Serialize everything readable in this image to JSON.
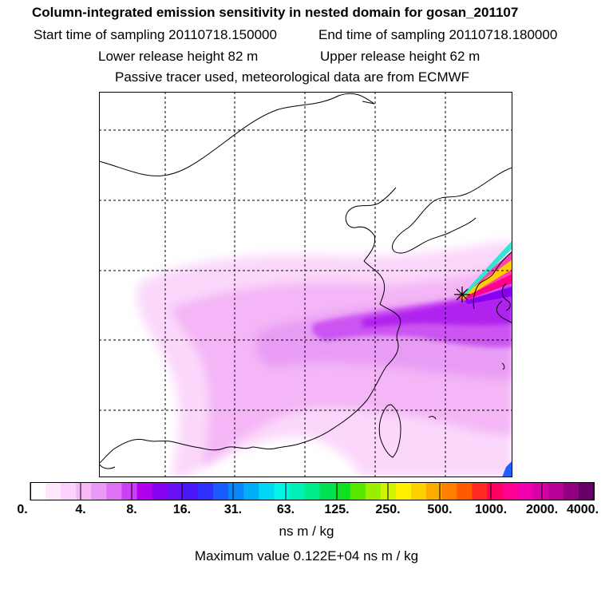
{
  "header": {
    "title": "Column-integrated emission sensitivity in nested domain for gosan_201107",
    "start_label": "Start time of sampling 20110718.150000",
    "end_label": "End time of sampling 20110718.180000",
    "lower_label": "Lower release height   82 m",
    "upper_label": "Upper release height   62 m",
    "tracer_label": "Passive tracer used, meteorological data are from ECMWF"
  },
  "colorbar": {
    "tick_labels": [
      "0.",
      "4.",
      "8.",
      "16.",
      "31.",
      "63.",
      "125.",
      "250.",
      "500.",
      "1000.",
      "2000.",
      "4000."
    ],
    "colors": [
      "#ffffff",
      "#fde8fd",
      "#fbd2fb",
      "#f7b8f7",
      "#e998f5",
      "#e070f5",
      "#cc40f5",
      "#b000ee",
      "#8800f0",
      "#6a10f5",
      "#4a18f8",
      "#2f30fb",
      "#1a5cfb",
      "#0a86fb",
      "#00aef8",
      "#00d6f5",
      "#00f5e8",
      "#00f0b8",
      "#00ea8a",
      "#00e050",
      "#10e020",
      "#58e800",
      "#98f000",
      "#d0f200",
      "#fff000",
      "#ffd000",
      "#ffaa00",
      "#ff8000",
      "#ff5a00",
      "#ff2a20",
      "#ff0060",
      "#ff0090",
      "#f000b0",
      "#d800a8",
      "#b8009a",
      "#900080",
      "#680068"
    ],
    "units": "ns m / kg",
    "maximum": "Maximum value  0.122E+04 ns m / kg"
  },
  "map": {
    "receptor_icon": "star-marker-icon",
    "receptor_color": "#000000",
    "gridline_color": "#000000",
    "plume_colors": [
      "#ff00a0",
      "#ffcc00",
      "#30e8d0",
      "#8800f0"
    ]
  }
}
